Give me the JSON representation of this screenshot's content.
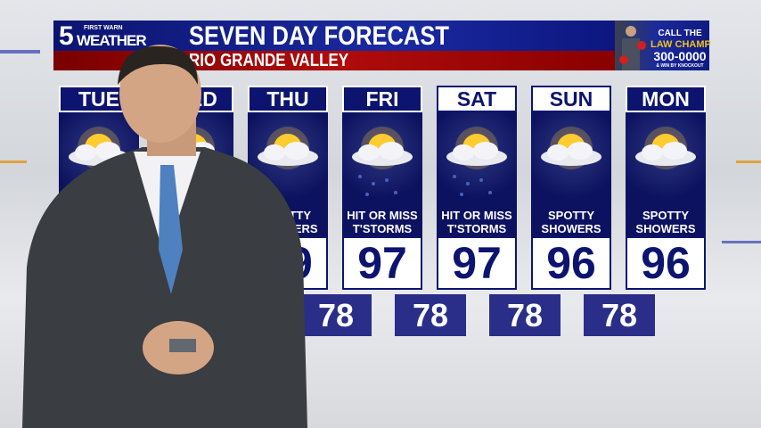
{
  "header": {
    "logo_number": "5",
    "logo_tag": "FIRST WARN",
    "logo_word": "WEATHER",
    "title": "SEVEN DAY FORECAST",
    "region": "RIO GRANDE VALLEY"
  },
  "ad": {
    "line1": "CALL THE",
    "line2": "LAW CHAMP",
    "line3": "300-0000",
    "line4": "& WIN BY KNOCKOUT"
  },
  "colors": {
    "navy": "#0c1470",
    "red": "#a00a0a",
    "low_box": "#2a2e88"
  },
  "days": [
    {
      "day": "TUE",
      "icon": "partly-cloudy-sun-icon",
      "condition": "",
      "high": "",
      "low": ""
    },
    {
      "day": "WED",
      "icon": "partly-cloudy-sun-icon",
      "condition": "",
      "high": "",
      "low": ""
    },
    {
      "day": "THU",
      "icon": "partly-cloudy-sun-icon",
      "condition": "SPOTTY SHOWERS",
      "high": "99",
      "low": "78"
    },
    {
      "day": "FRI",
      "icon": "thunderstorm-icon",
      "condition": "HIT OR MISS T'STORMS",
      "high": "97",
      "low": "78"
    },
    {
      "day": "SAT",
      "icon": "thunderstorm-icon",
      "condition": "HIT OR MISS T'STORMS",
      "high": "97",
      "low": "78"
    },
    {
      "day": "SUN",
      "icon": "partly-cloudy-sun-icon",
      "condition": "SPOTTY SHOWERS",
      "high": "96",
      "low": "78"
    },
    {
      "day": "MON",
      "icon": "partly-cloudy-sun-icon",
      "condition": "SPOTTY SHOWERS",
      "high": "96",
      "low": ""
    }
  ]
}
